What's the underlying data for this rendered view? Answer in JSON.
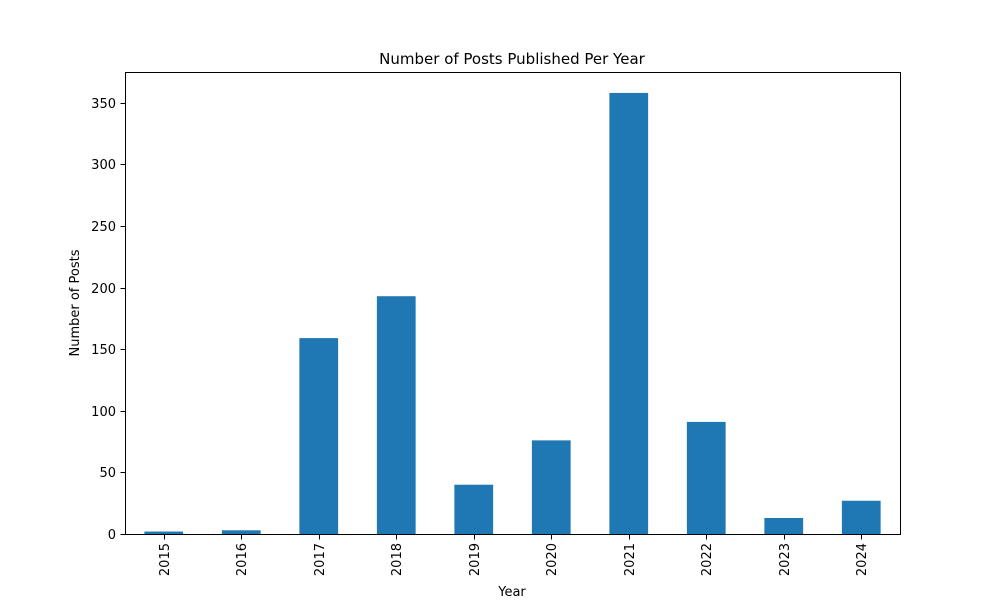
{
  "chart_data": {
    "type": "bar",
    "title": "Number of Posts Published Per Year",
    "xlabel": "Year",
    "ylabel": "Number of Posts",
    "categories": [
      "2015",
      "2016",
      "2017",
      "2018",
      "2019",
      "2020",
      "2021",
      "2022",
      "2023",
      "2024"
    ],
    "values": [
      2,
      3,
      159,
      193,
      40,
      76,
      358,
      91,
      13,
      27
    ],
    "ylim": [
      0,
      375
    ],
    "yticks": [
      0,
      50,
      100,
      150,
      200,
      250,
      300,
      350
    ],
    "bar_color": "#1f77b4",
    "grid": false,
    "legend": "none"
  }
}
